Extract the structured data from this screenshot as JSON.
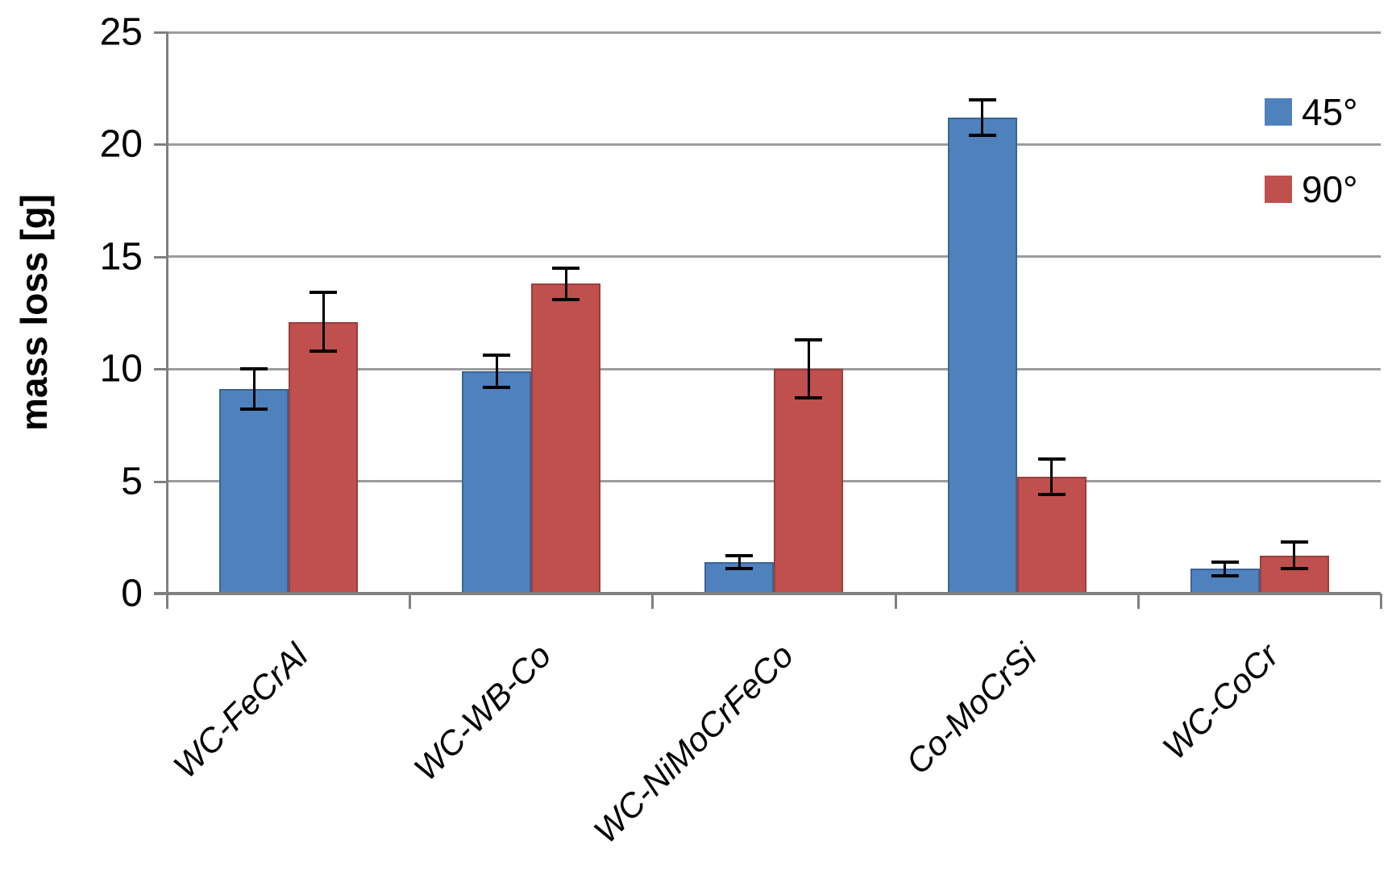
{
  "chart_data": {
    "type": "bar",
    "title": "",
    "xlabel": "",
    "ylabel": "mass loss [g]",
    "ylim": [
      0,
      25
    ],
    "yticks": [
      0,
      5,
      10,
      15,
      20,
      25
    ],
    "grid": true,
    "error_bars": true,
    "legend_position": "top-right",
    "categories": [
      "WC-FeCrAl",
      "WC-WB-Co",
      "WC-NiMoCrFeCo",
      "Co-MoCrSi",
      "WC-CoCr"
    ],
    "series": [
      {
        "name": "45°",
        "color": "#4F81BD",
        "border_color": "#3A6496",
        "values": [
          9.1,
          9.9,
          1.4,
          21.2,
          1.1
        ],
        "errors": [
          0.9,
          0.7,
          0.3,
          0.8,
          0.3
        ]
      },
      {
        "name": "90°",
        "color": "#C0504D",
        "border_color": "#9A3D3B",
        "values": [
          12.1,
          13.8,
          10.0,
          5.2,
          1.7
        ],
        "errors": [
          1.3,
          0.7,
          1.3,
          0.8,
          0.6
        ]
      }
    ],
    "colors": {
      "gridline": "#9C9C9C",
      "axis": "#808080",
      "error_bar": "#000000",
      "text": "#000000",
      "background": "#FFFFFF"
    }
  }
}
